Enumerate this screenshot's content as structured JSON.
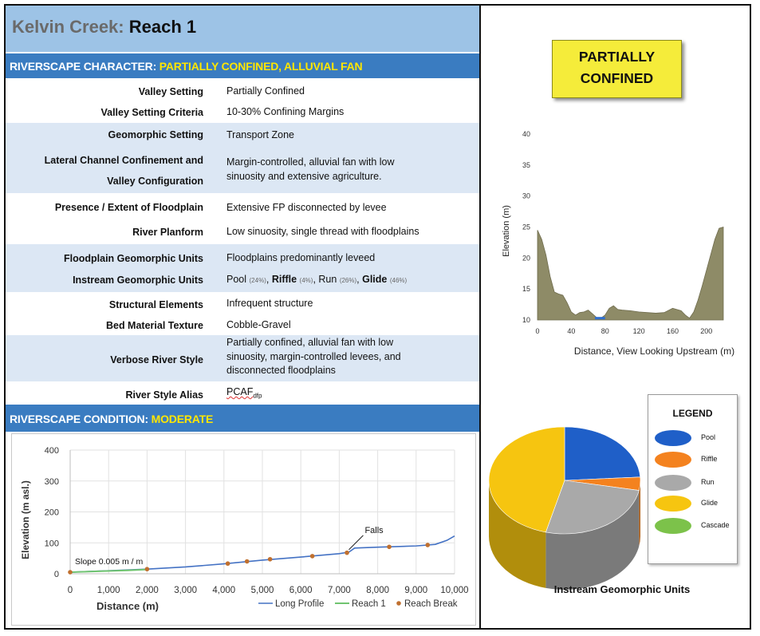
{
  "title": {
    "creek": "Kelvin Creek:",
    "reach": "Reach 1"
  },
  "character": {
    "label": "RIVERSCAPE CHARACTER:",
    "value": "PARTIALLY CONFINED, ALLUVIAL FAN"
  },
  "condition": {
    "label": "RIVERSCAPE CONDITION:",
    "value": "MODERATE"
  },
  "attributes": {
    "valley_setting": {
      "label": "Valley Setting",
      "value": "Partially Confined"
    },
    "valley_setting_criteria": {
      "label": "Valley Setting Criteria",
      "value": "10-30% Confining Margins"
    },
    "geomorphic_setting": {
      "label": "Geomorphic Setting",
      "value": "Transport Zone"
    },
    "lateral_confinement": {
      "label_line1": "Lateral Channel Confinement and",
      "label_line2": "Valley Configuration",
      "value_line1": "Margin-controlled, alluvial fan with low",
      "value_line2": "sinuosity and extensive agriculture."
    },
    "floodplain_presence": {
      "label": "Presence / Extent of Floodplain",
      "value": "Extensive FP disconnected by levee"
    },
    "river_planform": {
      "label": "River Planform",
      "value": "Low sinuosity, single thread with floodplains"
    },
    "floodplain_units": {
      "label": "Floodplain Geomorphic Units",
      "value": "Floodplains predominantly leveed"
    },
    "instream_units": {
      "label": "Instream Geomorphic Units",
      "pool": "Pool",
      "pool_pct": "(24%)",
      "riffle": "Riffle",
      "riffle_pct": "(4%)",
      "run": "Run",
      "run_pct": "(26%)",
      "glide": "Glide",
      "glide_pct": "(46%)"
    },
    "structural_elements": {
      "label": "Structural Elements",
      "value": "Infrequent structure"
    },
    "bed_material": {
      "label": "Bed Material Texture",
      "value": "Cobble-Gravel"
    },
    "verbose_style": {
      "label": "Verbose River Style",
      "value_line1": "Partially confined, alluvial fan with low",
      "value_line2": "sinuosity, margin-controlled levees, and",
      "value_line3": "disconnected floodplains"
    },
    "style_alias": {
      "label": "River Style Alias",
      "value": "PCAF",
      "sub": "dfp"
    }
  },
  "stamp": {
    "line1": "PARTIALLY",
    "line2": "CONFINED"
  },
  "legend": {
    "title": "LEGEND",
    "items": [
      {
        "label": "Pool",
        "color": "#1f5fc8"
      },
      {
        "label": "Riffle",
        "color": "#f4821f"
      },
      {
        "label": "Run",
        "color": "#a9a9a9"
      },
      {
        "label": "Glide",
        "color": "#f6c510"
      },
      {
        "label": "Cascade",
        "color": "#7cc24a"
      }
    ]
  },
  "pie_caption": "Instream Geomorphic Units",
  "chart_data": [
    {
      "type": "area",
      "xlabel": "Distance, View Looking Upstream (m)",
      "ylabel": "Elevation (m)",
      "xlim": [
        0,
        220
      ],
      "ylim": [
        10,
        40
      ],
      "xticks": [
        0,
        40,
        80,
        120,
        160,
        200
      ],
      "yticks": [
        10,
        15,
        20,
        25,
        30,
        35,
        40
      ],
      "fill_color": "#8e8b67",
      "water_color": "#2f6fd0",
      "water_x": [
        68,
        80
      ],
      "water_y": 10.3,
      "x": [
        0,
        5,
        10,
        15,
        20,
        25,
        30,
        35,
        40,
        45,
        50,
        55,
        60,
        65,
        70,
        75,
        80,
        85,
        90,
        95,
        100,
        110,
        120,
        130,
        140,
        150,
        160,
        170,
        175,
        180,
        185,
        190,
        195,
        200,
        205,
        210,
        215,
        220
      ],
      "y": [
        24.5,
        23,
        20.5,
        17,
        14.5,
        14.2,
        14,
        12.8,
        11.3,
        10.8,
        11.2,
        11.3,
        11.6,
        11,
        10.4,
        10.3,
        10.8,
        11.9,
        12.3,
        11.7,
        11.6,
        11.5,
        11.3,
        11.2,
        11.1,
        11.2,
        11.9,
        11.5,
        10.8,
        10.3,
        11.3,
        13.2,
        15.5,
        18,
        20.5,
        23,
        24.8,
        25
      ]
    },
    {
      "type": "line",
      "xlabel": "Distance (m)",
      "ylabel": "Elevation (m asl.)",
      "xlim": [
        0,
        10000
      ],
      "ylim": [
        0,
        400
      ],
      "xtick_labels": [
        "0",
        "1,000",
        "2,000",
        "3,000",
        "4,000",
        "5,000",
        "6,000",
        "7,000",
        "8,000",
        "9,000",
        "10,000"
      ],
      "ytick_labels": [
        "0",
        "100",
        "200",
        "300",
        "400"
      ],
      "series": [
        {
          "name": "Long Profile",
          "color": "#4472c4",
          "x": [
            0,
            2000,
            3000,
            4000,
            5000,
            6000,
            7000,
            7250,
            7400,
            8000,
            8500,
            9000,
            9500,
            9800,
            10000
          ],
          "y": [
            5,
            15,
            22,
            32,
            44,
            54,
            65,
            70,
            83,
            86,
            88,
            90,
            95,
            108,
            122
          ]
        },
        {
          "name": "Reach 1",
          "color": "#70c470",
          "x": [
            0,
            500,
            1000,
            1500,
            2000
          ],
          "y": [
            5,
            7,
            9,
            11,
            14
          ]
        },
        {
          "name": "Reach Break",
          "color": "#c0702f",
          "x": [
            0,
            2000,
            4100,
            4600,
            5200,
            6300,
            7200,
            8300,
            9300
          ],
          "y": [
            5,
            15,
            33,
            40,
            47,
            57,
            68,
            87,
            93
          ]
        }
      ],
      "annotations": [
        {
          "text": "Falls",
          "x": 7250,
          "y": 70
        },
        {
          "text": "Slope 0.005 m / m",
          "x": 0,
          "y": 5
        }
      ]
    },
    {
      "type": "pie",
      "title": "Instream Geomorphic Units",
      "labels": [
        "Pool",
        "Riffle",
        "Run",
        "Glide"
      ],
      "values": [
        24,
        4,
        26,
        46
      ],
      "colors": [
        "#1f5fc8",
        "#f4821f",
        "#a9a9a9",
        "#f6c510"
      ]
    }
  ]
}
